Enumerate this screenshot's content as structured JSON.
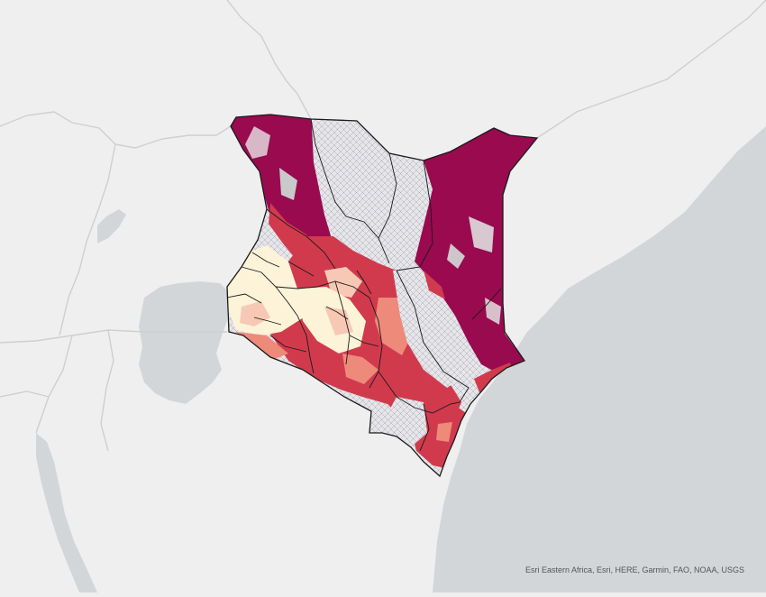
{
  "map": {
    "attribution": "Esri Eastern Africa, Esri, HERE, Garmin, FAO, NOAA, USGS",
    "colors": {
      "land": "#efefef",
      "water": "#d2d6d8",
      "boundary": "#cfcfcf",
      "very_high": "#990a4f",
      "high": "#d13a4d",
      "medium": "#ee8a7a",
      "low": "#f7c9b5",
      "very_low": "#fdf3d8",
      "hatch_area": "#e3e3e7"
    }
  }
}
